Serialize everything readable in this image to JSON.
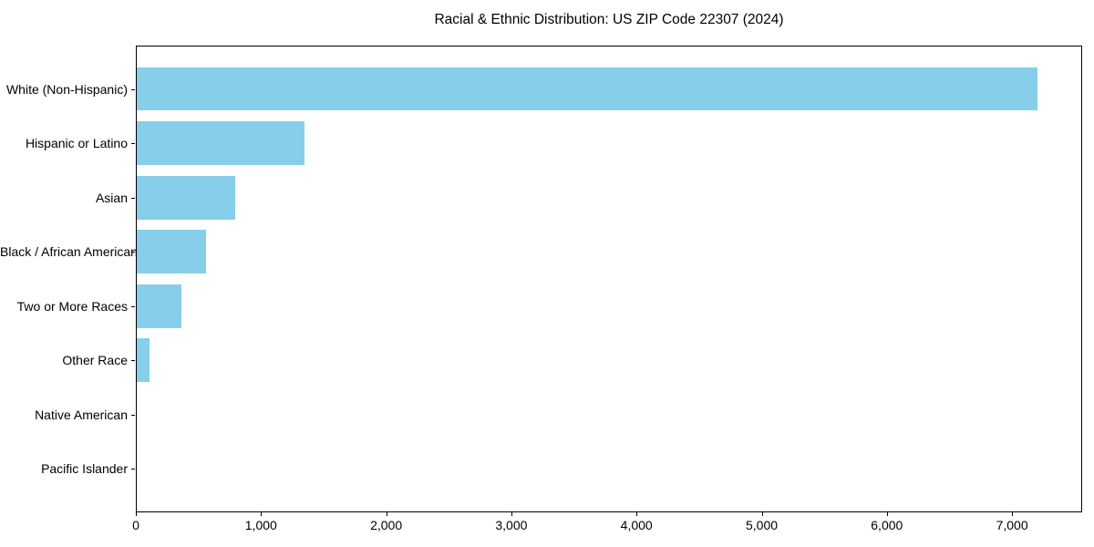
{
  "page": {
    "background": "#ffffff"
  },
  "chart_data": {
    "type": "bar",
    "orientation": "horizontal",
    "title": "Racial & Ethnic Distribution: US ZIP Code 22307 (2024)",
    "categories": [
      "White (Non-Hispanic)",
      "Hispanic or Latino",
      "Asian",
      "Black / African American",
      "Two or More Races",
      "Other Race",
      "Native American",
      "Pacific Islander"
    ],
    "values": [
      7200,
      1340,
      790,
      555,
      360,
      105,
      0,
      0
    ],
    "xlabel": "",
    "ylabel": "",
    "xlim": [
      0,
      7560
    ],
    "x_ticks": [
      0,
      1000,
      2000,
      3000,
      4000,
      5000,
      6000,
      7000
    ],
    "x_tick_labels": [
      "0",
      "1,000",
      "2,000",
      "3,000",
      "4,000",
      "5,000",
      "6,000",
      "7,000"
    ],
    "bar_color": "#87CEEB",
    "axis_color": "#000000",
    "text_color": "#000000",
    "grid": false,
    "legend": false,
    "bar_height_fraction": 0.8
  }
}
